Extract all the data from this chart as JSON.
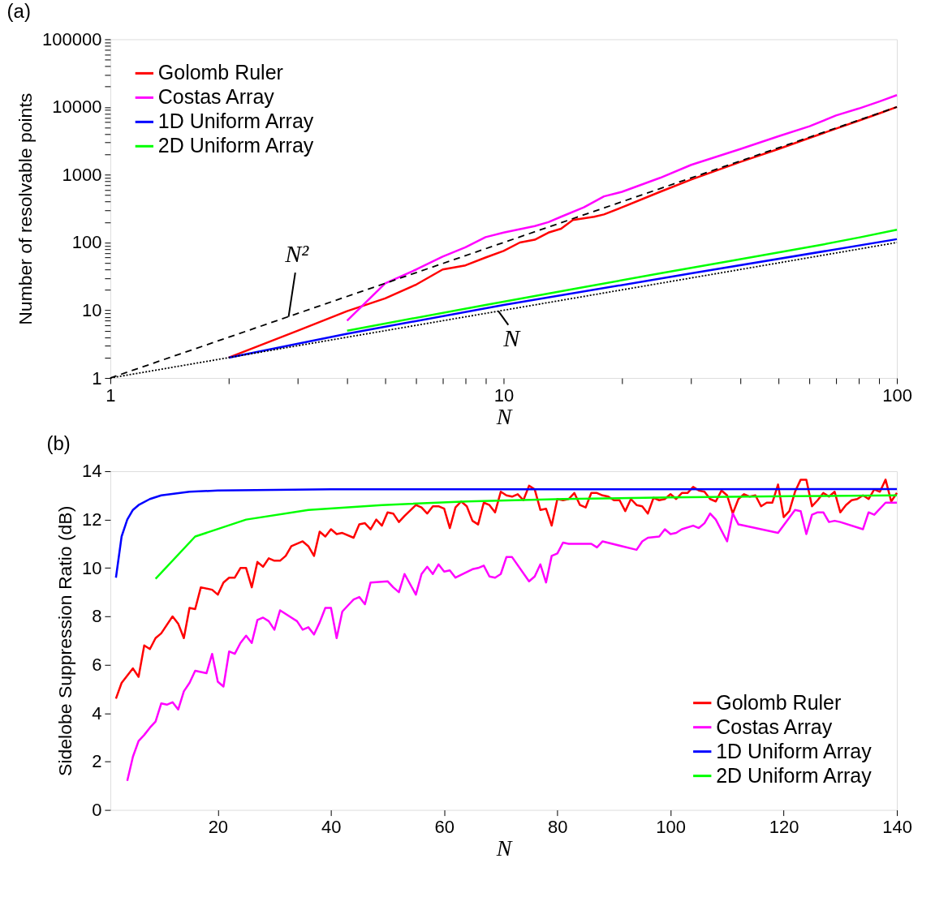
{
  "chart_data": [
    {
      "type": "line",
      "title": "(a)",
      "xlabel": "N",
      "ylabel": "Number of resolvable points",
      "log": "xy",
      "legend": "top left",
      "grid": false,
      "xlim": [
        1,
        100
      ],
      "ylim": [
        1,
        100000
      ],
      "xticks": [
        1,
        {
          "value": 2,
          "label": null
        },
        {
          "value": 3,
          "label": null
        },
        {
          "value": 4,
          "label": null
        },
        {
          "value": 5,
          "label": null
        },
        {
          "value": 6,
          "label": null
        },
        {
          "value": 7,
          "label": null
        },
        {
          "value": 8,
          "label": null
        },
        {
          "value": 9,
          "label": null
        },
        10,
        {
          "value": 20,
          "label": null
        },
        {
          "value": 30,
          "label": null
        },
        {
          "value": 40,
          "label": null
        },
        {
          "value": 50,
          "label": null
        },
        {
          "value": 60,
          "label": null
        },
        {
          "value": 70,
          "label": null
        },
        {
          "value": 80,
          "label": null
        },
        {
          "value": 90,
          "label": null
        },
        100
      ],
      "yticks": [
        1,
        {
          "value": 2,
          "label": null
        },
        {
          "value": 3,
          "label": null
        },
        {
          "value": 4,
          "label": null
        },
        {
          "value": 5,
          "label": null
        },
        {
          "value": 6,
          "label": null
        },
        {
          "value": 7,
          "label": null
        },
        {
          "value": 8,
          "label": null
        },
        {
          "value": 9,
          "label": null
        },
        10,
        {
          "value": 20,
          "label": null
        },
        {
          "value": 30,
          "label": null
        },
        {
          "value": 40,
          "label": null
        },
        {
          "value": 50,
          "label": null
        },
        {
          "value": 60,
          "label": null
        },
        {
          "value": 70,
          "label": null
        },
        {
          "value": 80,
          "label": null
        },
        {
          "value": 90,
          "label": null
        },
        100,
        {
          "value": 200,
          "label": null
        },
        {
          "value": 300,
          "label": null
        },
        {
          "value": 400,
          "label": null
        },
        {
          "value": 500,
          "label": null
        },
        {
          "value": 600,
          "label": null
        },
        {
          "value": 700,
          "label": null
        },
        {
          "value": 800,
          "label": null
        },
        {
          "value": 900,
          "label": null
        },
        1000,
        {
          "value": 2000,
          "label": null
        },
        {
          "value": 3000,
          "label": null
        },
        {
          "value": 4000,
          "label": null
        },
        {
          "value": 5000,
          "label": null
        },
        {
          "value": 6000,
          "label": null
        },
        {
          "value": 7000,
          "label": null
        },
        {
          "value": 8000,
          "label": null
        },
        {
          "value": 9000,
          "label": null
        },
        10000,
        {
          "value": 20000,
          "label": null
        },
        {
          "value": 30000,
          "label": null
        },
        {
          "value": 40000,
          "label": null
        },
        {
          "value": 50000,
          "label": null
        },
        {
          "value": 60000,
          "label": null
        },
        {
          "value": 70000,
          "label": null
        },
        {
          "value": 80000,
          "label": null
        },
        {
          "value": 90000,
          "label": null
        },
        100000
      ],
      "series": [
        {
          "name": "Golomb Ruler",
          "color": "#ff0000",
          "x": [
            2,
            3,
            4,
            5,
            6,
            7,
            8,
            9,
            10,
            11,
            12,
            13,
            14,
            15,
            17,
            18,
            20,
            25,
            30,
            40,
            50,
            60,
            70,
            80,
            90,
            100
          ],
          "values": [
            2,
            5,
            9.7,
            15,
            24,
            40,
            46,
            60,
            75,
            100,
            110,
            140,
            160,
            215,
            240,
            260,
            330,
            560,
            850,
            1550,
            2400,
            3500,
            4800,
            6300,
            8000,
            10000
          ]
        },
        {
          "name": "Costas Array",
          "color": "#ff00ff",
          "x": [
            4,
            5,
            6,
            7,
            8,
            9,
            10,
            12,
            13,
            14,
            16,
            18,
            20,
            25,
            30,
            40,
            50,
            60,
            70,
            80,
            90,
            100
          ],
          "values": [
            7,
            25,
            40,
            62,
            85,
            120,
            140,
            175,
            200,
            240,
            330,
            480,
            560,
            900,
            1400,
            2400,
            3700,
            5200,
            7500,
            9500,
            12000,
            15000
          ]
        },
        {
          "name": "1D Uniform Array",
          "color": "#0000ff",
          "x": [
            2,
            4,
            10,
            30,
            100
          ],
          "values": [
            2,
            4.5,
            12,
            35,
            112
          ]
        },
        {
          "name": "2D Uniform Array",
          "color": "#00ff00",
          "x": [
            4,
            9,
            16,
            25,
            36,
            49,
            64,
            81,
            100
          ],
          "values": [
            5,
            12,
            22,
            35,
            51,
            70,
            92,
            120,
            154
          ]
        },
        {
          "color": "#000000",
          "line_style": "dashed",
          "x": [
            1,
            100
          ],
          "values": [
            1,
            10000
          ]
        },
        {
          "color": "#000000",
          "line_style": "dotted",
          "x": [
            1,
            100
          ],
          "values": [
            1,
            100
          ]
        }
      ],
      "annotations": [
        {
          "text": "N²",
          "x": 2.84,
          "y": 8
        },
        {
          "text": "N",
          "x": 9.7,
          "y": 9.7
        }
      ]
    },
    {
      "type": "line",
      "title": "(b)",
      "xlabel": "N",
      "ylabel": "Sidelobe Suppression Ratio (dB)",
      "legend": "bottom right",
      "grid": false,
      "xlim": [
        1,
        140
      ],
      "ylim": [
        0,
        14
      ],
      "xticks": [
        20,
        40,
        60,
        80,
        100,
        120,
        140
      ],
      "yticks": [
        0,
        2,
        4,
        6,
        8,
        10,
        12,
        14
      ],
      "series": [
        {
          "name": "Golomb Ruler",
          "color": "#ff0000",
          "x": [
            2,
            3,
            5,
            6,
            7,
            8,
            9,
            10,
            12,
            13,
            14,
            15,
            16,
            17,
            19,
            20,
            21,
            22,
            23,
            24,
            25,
            26,
            27,
            28,
            29,
            30,
            31,
            32,
            33,
            35,
            36,
            37,
            38,
            39,
            40,
            41,
            42,
            44,
            45,
            46,
            47,
            48,
            49,
            50,
            51,
            52,
            53,
            55,
            56,
            57,
            58,
            59,
            60,
            61,
            62,
            63,
            64,
            65,
            66,
            67,
            68,
            69,
            70,
            71,
            72,
            73,
            74,
            75,
            76,
            77,
            78,
            79,
            80,
            81,
            82,
            83,
            84,
            85,
            86,
            87,
            88,
            89,
            90,
            91,
            92,
            93,
            94,
            95,
            96,
            97,
            98,
            99,
            100,
            101,
            102,
            103,
            104,
            105,
            106,
            107,
            108,
            109,
            110,
            111,
            112,
            113,
            114,
            115,
            116,
            117,
            118,
            119,
            120,
            121,
            122,
            123,
            124,
            125,
            126,
            127,
            128,
            129,
            130,
            131,
            132,
            133,
            134,
            135,
            136,
            137,
            138,
            139,
            140
          ],
          "values": [
            4.6,
            5.25,
            5.85,
            5.5,
            6.8,
            6.65,
            7.1,
            7.3,
            8.0,
            7.7,
            7.1,
            8.35,
            8.3,
            9.2,
            9.1,
            8.9,
            9.4,
            9.6,
            9.6,
            10.0,
            10.0,
            9.2,
            10.25,
            10.05,
            10.4,
            10.3,
            10.3,
            10.5,
            10.9,
            11.1,
            10.9,
            10.5,
            11.5,
            11.3,
            11.6,
            11.4,
            11.45,
            11.25,
            11.8,
            11.85,
            11.6,
            12.0,
            11.75,
            12.3,
            12.25,
            11.9,
            12.15,
            12.6,
            12.5,
            12.25,
            12.55,
            12.55,
            12.45,
            11.65,
            12.5,
            12.75,
            12.55,
            11.95,
            11.8,
            12.7,
            12.6,
            12.3,
            13.15,
            13.0,
            12.95,
            13.05,
            12.8,
            13.4,
            13.25,
            12.4,
            12.45,
            11.75,
            12.85,
            12.8,
            12.85,
            13.1,
            12.6,
            12.5,
            13.1,
            13.1,
            13.0,
            12.95,
            12.8,
            12.8,
            12.35,
            12.85,
            12.6,
            12.55,
            12.25,
            12.9,
            12.8,
            12.85,
            13.05,
            12.85,
            13.1,
            13.1,
            13.35,
            13.2,
            13.15,
            12.85,
            12.75,
            13.2,
            13.0,
            12.25,
            12.85,
            13.05,
            12.95,
            13.0,
            12.55,
            12.7,
            12.7,
            13.45,
            12.1,
            12.35,
            13.15,
            13.65,
            13.65,
            12.55,
            12.8,
            13.1,
            12.95,
            13.15,
            12.3,
            12.6,
            12.8,
            12.85,
            13.0,
            12.85,
            13.25,
            13.15,
            13.65,
            12.75,
            13.1
          ]
        },
        {
          "name": "Costas Array",
          "color": "#ff00ff",
          "x": [
            4,
            5,
            6,
            7,
            8,
            9,
            10,
            11,
            12,
            13,
            14,
            15,
            16,
            17,
            18,
            19,
            20,
            21,
            22,
            23,
            24,
            25,
            26,
            27,
            28,
            29,
            30,
            31,
            34,
            35,
            36,
            37,
            38,
            39,
            40,
            41,
            42,
            43,
            44,
            45,
            46,
            47,
            50,
            51,
            52,
            53,
            55,
            56,
            57,
            58,
            59,
            60,
            61,
            62,
            65,
            66,
            67,
            68,
            69,
            70,
            71,
            72,
            75,
            76,
            77,
            78,
            79,
            80,
            81,
            82,
            86,
            87,
            88,
            94,
            95,
            96,
            98,
            99,
            100,
            101,
            102,
            104,
            105,
            106,
            107,
            108,
            110,
            111,
            112,
            119,
            122,
            123,
            124,
            125,
            126,
            127,
            128,
            129,
            130,
            134,
            135,
            136,
            138,
            140
          ],
          "values": [
            1.2,
            2.2,
            2.85,
            3.1,
            3.4,
            3.65,
            4.4,
            4.35,
            4.45,
            4.15,
            4.9,
            5.25,
            5.75,
            5.7,
            5.65,
            6.45,
            5.3,
            5.1,
            6.55,
            6.45,
            6.9,
            7.2,
            6.9,
            7.85,
            7.95,
            7.8,
            7.45,
            8.25,
            7.8,
            7.45,
            7.55,
            7.25,
            7.75,
            8.35,
            8.35,
            7.1,
            8.2,
            8.45,
            8.7,
            8.8,
            8.5,
            9.4,
            9.45,
            9.2,
            9.0,
            9.75,
            8.9,
            9.75,
            10.05,
            9.75,
            10.15,
            9.85,
            9.9,
            9.6,
            9.95,
            10.0,
            10.1,
            9.65,
            9.6,
            9.75,
            10.45,
            10.45,
            9.45,
            9.65,
            10.15,
            9.4,
            10.5,
            10.6,
            11.05,
            11.0,
            11.0,
            10.85,
            11.1,
            10.75,
            11.1,
            11.25,
            11.3,
            11.6,
            11.4,
            11.45,
            11.6,
            11.75,
            11.65,
            11.85,
            12.25,
            12.0,
            11.1,
            12.25,
            11.8,
            11.45,
            12.4,
            12.35,
            11.4,
            12.2,
            12.3,
            12.3,
            11.9,
            11.95,
            11.9,
            11.6,
            12.3,
            12.2,
            12.7,
            12.7
          ]
        },
        {
          "name": "1D Uniform Array",
          "color": "#0000ff",
          "x": [
            2,
            3,
            4,
            5,
            6,
            8,
            10,
            15,
            20,
            40,
            140
          ],
          "values": [
            9.6,
            11.3,
            12.0,
            12.4,
            12.6,
            12.85,
            13.0,
            13.15,
            13.2,
            13.25,
            13.26
          ]
        },
        {
          "name": "2D Uniform Array",
          "color": "#00ff00",
          "x": [
            9,
            16,
            25,
            36,
            49,
            64,
            81,
            100,
            121,
            140
          ],
          "values": [
            9.55,
            11.3,
            12.0,
            12.4,
            12.6,
            12.75,
            12.85,
            12.92,
            12.97,
            13.0
          ]
        }
      ]
    }
  ]
}
